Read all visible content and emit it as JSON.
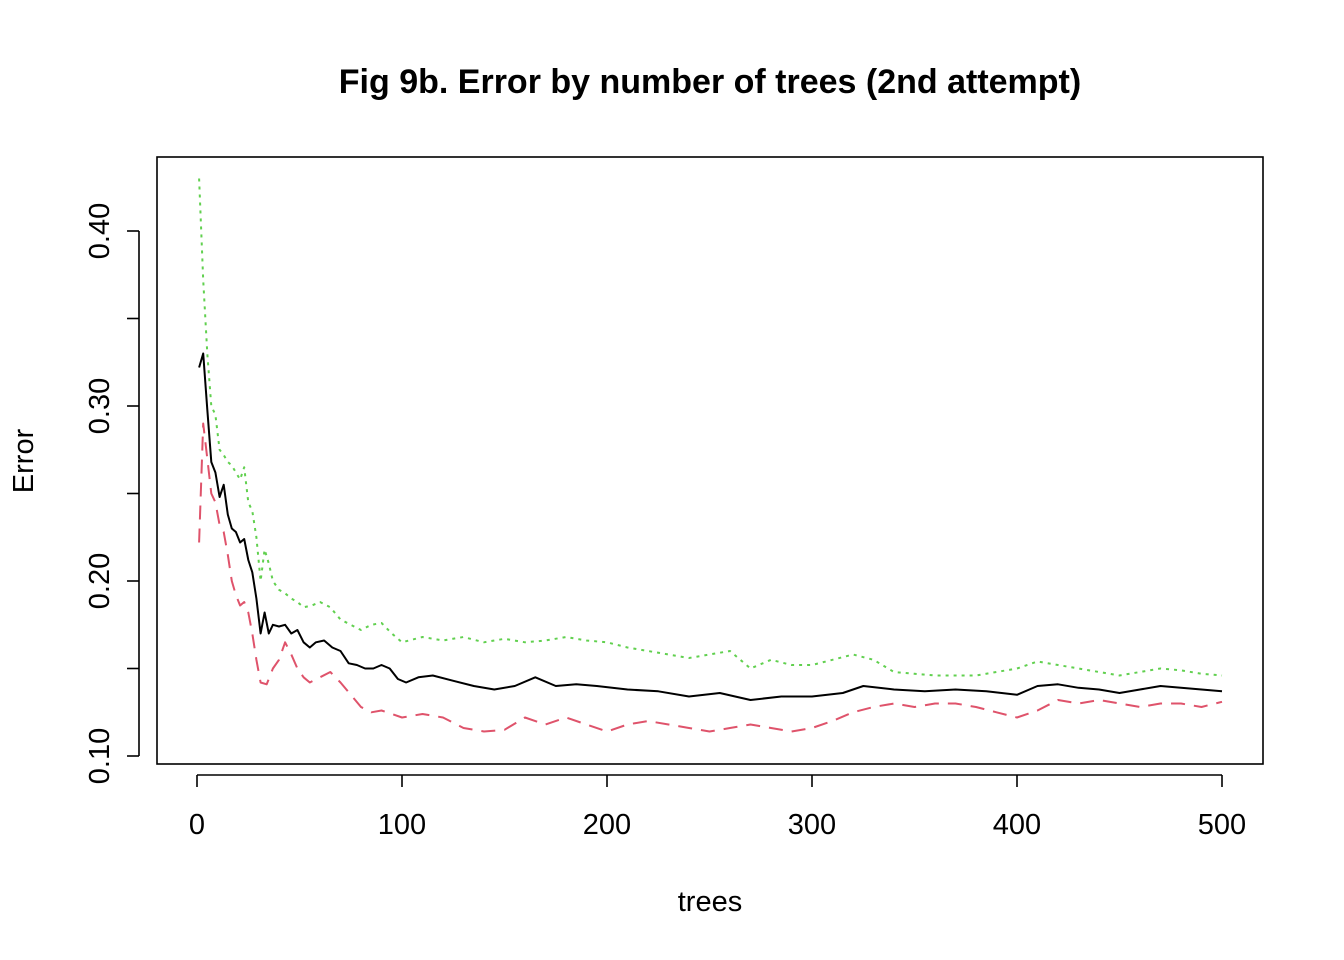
{
  "chart_data": {
    "type": "line",
    "title": "Fig 9b. Error by number of trees (2nd attempt)",
    "xlabel": "trees",
    "ylabel": "Error",
    "xlim": [
      0,
      500
    ],
    "ylim": [
      0.1,
      0.43
    ],
    "x_ticks": [
      "0",
      "100",
      "200",
      "300",
      "400",
      "500"
    ],
    "y_ticks": [
      "0.10",
      "0.20",
      "0.30",
      "0.40"
    ],
    "grid": false,
    "legend": "none",
    "series": [
      {
        "color": "#000000",
        "dash": "solid",
        "points": [
          [
            1,
            0.322
          ],
          [
            3,
            0.33
          ],
          [
            5,
            0.298
          ],
          [
            7,
            0.268
          ],
          [
            9,
            0.262
          ],
          [
            11,
            0.248
          ],
          [
            13,
            0.255
          ],
          [
            15,
            0.238
          ],
          [
            17,
            0.23
          ],
          [
            19,
            0.228
          ],
          [
            21,
            0.222
          ],
          [
            23,
            0.224
          ],
          [
            25,
            0.212
          ],
          [
            27,
            0.205
          ],
          [
            29,
            0.19
          ],
          [
            31,
            0.17
          ],
          [
            33,
            0.182
          ],
          [
            35,
            0.17
          ],
          [
            37,
            0.175
          ],
          [
            40,
            0.174
          ],
          [
            43,
            0.175
          ],
          [
            46,
            0.17
          ],
          [
            49,
            0.172
          ],
          [
            52,
            0.165
          ],
          [
            55,
            0.162
          ],
          [
            58,
            0.165
          ],
          [
            62,
            0.166
          ],
          [
            66,
            0.162
          ],
          [
            70,
            0.16
          ],
          [
            74,
            0.153
          ],
          [
            78,
            0.152
          ],
          [
            82,
            0.15
          ],
          [
            86,
            0.15
          ],
          [
            90,
            0.152
          ],
          [
            94,
            0.15
          ],
          [
            98,
            0.144
          ],
          [
            102,
            0.142
          ],
          [
            108,
            0.145
          ],
          [
            115,
            0.146
          ],
          [
            125,
            0.143
          ],
          [
            135,
            0.14
          ],
          [
            145,
            0.138
          ],
          [
            155,
            0.14
          ],
          [
            165,
            0.145
          ],
          [
            175,
            0.14
          ],
          [
            185,
            0.141
          ],
          [
            195,
            0.14
          ],
          [
            210,
            0.138
          ],
          [
            225,
            0.137
          ],
          [
            240,
            0.134
          ],
          [
            255,
            0.136
          ],
          [
            270,
            0.132
          ],
          [
            285,
            0.134
          ],
          [
            300,
            0.134
          ],
          [
            315,
            0.136
          ],
          [
            325,
            0.14
          ],
          [
            340,
            0.138
          ],
          [
            355,
            0.137
          ],
          [
            370,
            0.138
          ],
          [
            385,
            0.137
          ],
          [
            400,
            0.135
          ],
          [
            410,
            0.14
          ],
          [
            420,
            0.141
          ],
          [
            430,
            0.139
          ],
          [
            440,
            0.138
          ],
          [
            450,
            0.136
          ],
          [
            460,
            0.138
          ],
          [
            470,
            0.14
          ],
          [
            480,
            0.139
          ],
          [
            490,
            0.138
          ],
          [
            500,
            0.137
          ]
        ]
      },
      {
        "color": "#DF536B",
        "dash": "dashed",
        "points": [
          [
            1,
            0.222
          ],
          [
            3,
            0.29
          ],
          [
            5,
            0.27
          ],
          [
            7,
            0.25
          ],
          [
            9,
            0.245
          ],
          [
            11,
            0.232
          ],
          [
            13,
            0.228
          ],
          [
            15,
            0.215
          ],
          [
            17,
            0.2
          ],
          [
            19,
            0.192
          ],
          [
            21,
            0.186
          ],
          [
            23,
            0.188
          ],
          [
            25,
            0.182
          ],
          [
            27,
            0.17
          ],
          [
            29,
            0.155
          ],
          [
            31,
            0.142
          ],
          [
            34,
            0.141
          ],
          [
            37,
            0.15
          ],
          [
            40,
            0.155
          ],
          [
            43,
            0.165
          ],
          [
            46,
            0.158
          ],
          [
            49,
            0.15
          ],
          [
            52,
            0.145
          ],
          [
            55,
            0.142
          ],
          [
            60,
            0.145
          ],
          [
            65,
            0.148
          ],
          [
            70,
            0.142
          ],
          [
            75,
            0.135
          ],
          [
            80,
            0.128
          ],
          [
            85,
            0.125
          ],
          [
            90,
            0.126
          ],
          [
            95,
            0.124
          ],
          [
            100,
            0.122
          ],
          [
            110,
            0.124
          ],
          [
            120,
            0.122
          ],
          [
            130,
            0.116
          ],
          [
            140,
            0.114
          ],
          [
            150,
            0.115
          ],
          [
            160,
            0.122
          ],
          [
            170,
            0.118
          ],
          [
            180,
            0.122
          ],
          [
            190,
            0.118
          ],
          [
            200,
            0.114
          ],
          [
            210,
            0.118
          ],
          [
            220,
            0.12
          ],
          [
            230,
            0.118
          ],
          [
            240,
            0.116
          ],
          [
            250,
            0.114
          ],
          [
            260,
            0.116
          ],
          [
            270,
            0.118
          ],
          [
            280,
            0.116
          ],
          [
            290,
            0.114
          ],
          [
            300,
            0.116
          ],
          [
            310,
            0.12
          ],
          [
            320,
            0.125
          ],
          [
            330,
            0.128
          ],
          [
            340,
            0.13
          ],
          [
            350,
            0.128
          ],
          [
            360,
            0.13
          ],
          [
            370,
            0.13
          ],
          [
            380,
            0.128
          ],
          [
            390,
            0.125
          ],
          [
            400,
            0.122
          ],
          [
            410,
            0.126
          ],
          [
            420,
            0.132
          ],
          [
            430,
            0.13
          ],
          [
            440,
            0.132
          ],
          [
            450,
            0.13
          ],
          [
            460,
            0.128
          ],
          [
            470,
            0.13
          ],
          [
            480,
            0.13
          ],
          [
            490,
            0.128
          ],
          [
            500,
            0.131
          ]
        ]
      },
      {
        "color": "#61D04F",
        "dash": "dotted",
        "points": [
          [
            1,
            0.43
          ],
          [
            3,
            0.372
          ],
          [
            5,
            0.33
          ],
          [
            7,
            0.3
          ],
          [
            9,
            0.295
          ],
          [
            11,
            0.275
          ],
          [
            13,
            0.272
          ],
          [
            15,
            0.268
          ],
          [
            17,
            0.266
          ],
          [
            19,
            0.262
          ],
          [
            21,
            0.258
          ],
          [
            23,
            0.265
          ],
          [
            25,
            0.245
          ],
          [
            27,
            0.24
          ],
          [
            29,
            0.225
          ],
          [
            31,
            0.2
          ],
          [
            33,
            0.218
          ],
          [
            35,
            0.21
          ],
          [
            37,
            0.2
          ],
          [
            40,
            0.195
          ],
          [
            43,
            0.193
          ],
          [
            46,
            0.19
          ],
          [
            49,
            0.188
          ],
          [
            52,
            0.185
          ],
          [
            56,
            0.186
          ],
          [
            60,
            0.188
          ],
          [
            65,
            0.185
          ],
          [
            70,
            0.178
          ],
          [
            75,
            0.175
          ],
          [
            80,
            0.172
          ],
          [
            85,
            0.175
          ],
          [
            90,
            0.176
          ],
          [
            95,
            0.17
          ],
          [
            100,
            0.165
          ],
          [
            110,
            0.168
          ],
          [
            120,
            0.166
          ],
          [
            130,
            0.168
          ],
          [
            140,
            0.165
          ],
          [
            150,
            0.167
          ],
          [
            160,
            0.165
          ],
          [
            170,
            0.166
          ],
          [
            180,
            0.168
          ],
          [
            190,
            0.166
          ],
          [
            200,
            0.165
          ],
          [
            210,
            0.162
          ],
          [
            220,
            0.16
          ],
          [
            230,
            0.158
          ],
          [
            240,
            0.156
          ],
          [
            250,
            0.158
          ],
          [
            260,
            0.16
          ],
          [
            270,
            0.15
          ],
          [
            280,
            0.155
          ],
          [
            290,
            0.152
          ],
          [
            300,
            0.152
          ],
          [
            310,
            0.155
          ],
          [
            320,
            0.158
          ],
          [
            330,
            0.155
          ],
          [
            340,
            0.148
          ],
          [
            350,
            0.147
          ],
          [
            360,
            0.146
          ],
          [
            370,
            0.146
          ],
          [
            380,
            0.146
          ],
          [
            390,
            0.148
          ],
          [
            400,
            0.15
          ],
          [
            410,
            0.154
          ],
          [
            420,
            0.152
          ],
          [
            430,
            0.15
          ],
          [
            440,
            0.148
          ],
          [
            450,
            0.146
          ],
          [
            460,
            0.148
          ],
          [
            470,
            0.15
          ],
          [
            480,
            0.149
          ],
          [
            490,
            0.147
          ],
          [
            500,
            0.146
          ]
        ]
      }
    ]
  }
}
